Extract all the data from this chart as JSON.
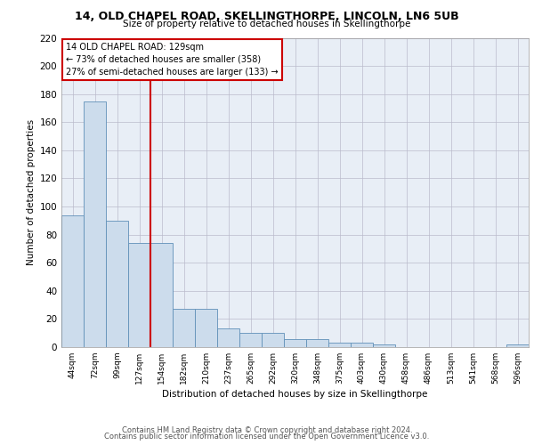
{
  "title1": "14, OLD CHAPEL ROAD, SKELLINGTHORPE, LINCOLN, LN6 5UB",
  "title2": "Size of property relative to detached houses in Skellingthorpe",
  "xlabel": "Distribution of detached houses by size in Skellingthorpe",
  "ylabel": "Number of detached properties",
  "categories": [
    "44sqm",
    "72sqm",
    "99sqm",
    "127sqm",
    "154sqm",
    "182sqm",
    "210sqm",
    "237sqm",
    "265sqm",
    "292sqm",
    "320sqm",
    "348sqm",
    "375sqm",
    "403sqm",
    "430sqm",
    "458sqm",
    "486sqm",
    "513sqm",
    "541sqm",
    "568sqm",
    "596sqm"
  ],
  "values": [
    94,
    175,
    90,
    74,
    74,
    27,
    27,
    13,
    10,
    10,
    6,
    6,
    3,
    3,
    2,
    0,
    0,
    0,
    0,
    0,
    2
  ],
  "bar_color": "#ccdcec",
  "bar_edge_color": "#6090b8",
  "vline_color": "#cc0000",
  "annotation_text": "14 OLD CHAPEL ROAD: 129sqm\n← 73% of detached houses are smaller (358)\n27% of semi-detached houses are larger (133) →",
  "annotation_box_color": "#ffffff",
  "annotation_box_edge": "#cc0000",
  "ylim": [
    0,
    220
  ],
  "yticks": [
    0,
    20,
    40,
    60,
    80,
    100,
    120,
    140,
    160,
    180,
    200,
    220
  ],
  "bg_color": "#e8eef6",
  "footer1": "Contains HM Land Registry data © Crown copyright and database right 2024.",
  "footer2": "Contains public sector information licensed under the Open Government Licence v3.0."
}
